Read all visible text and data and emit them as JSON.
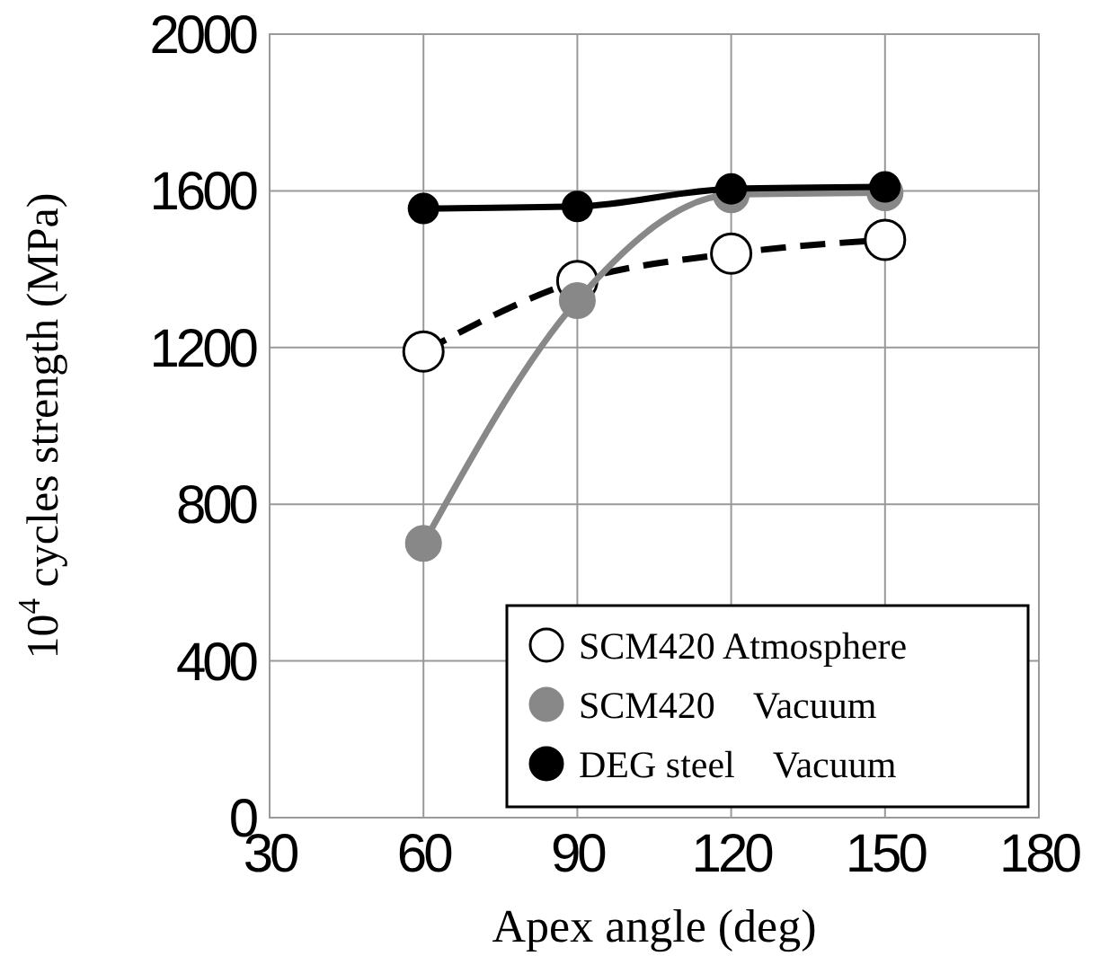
{
  "chart_data": {
    "type": "line",
    "xlabel": "Apex angle (deg)",
    "ylabel": "10$^{4}$ cycles strength (MPa)",
    "x": [
      60,
      90,
      120,
      150
    ],
    "xlim": [
      30,
      180
    ],
    "xticks": [
      30,
      60,
      90,
      120,
      150,
      180
    ],
    "ylim": [
      0,
      2000
    ],
    "yticks": [
      0,
      400,
      800,
      1200,
      1600,
      2000
    ],
    "grid": true,
    "legend": "bottom right",
    "marker": "circle",
    "series": [
      {
        "name": "SCM420 Atmosphere",
        "color": "#000000",
        "colors": [
          "#ffffff",
          "#ffffff",
          "#ffffff",
          "#ffffff"
        ],
        "line_style": "dashed",
        "values": [
          1190,
          1370,
          1440,
          1475
        ]
      },
      {
        "name": "SCM420 Vacuum",
        "color": "#888888",
        "line_style": "solid",
        "values": [
          700,
          1320,
          1590,
          1595
        ]
      },
      {
        "name": "DEG steel Vacuum",
        "color": "#000000",
        "line_style": "solid",
        "values": [
          1555,
          1560,
          1605,
          1610
        ]
      }
    ]
  }
}
